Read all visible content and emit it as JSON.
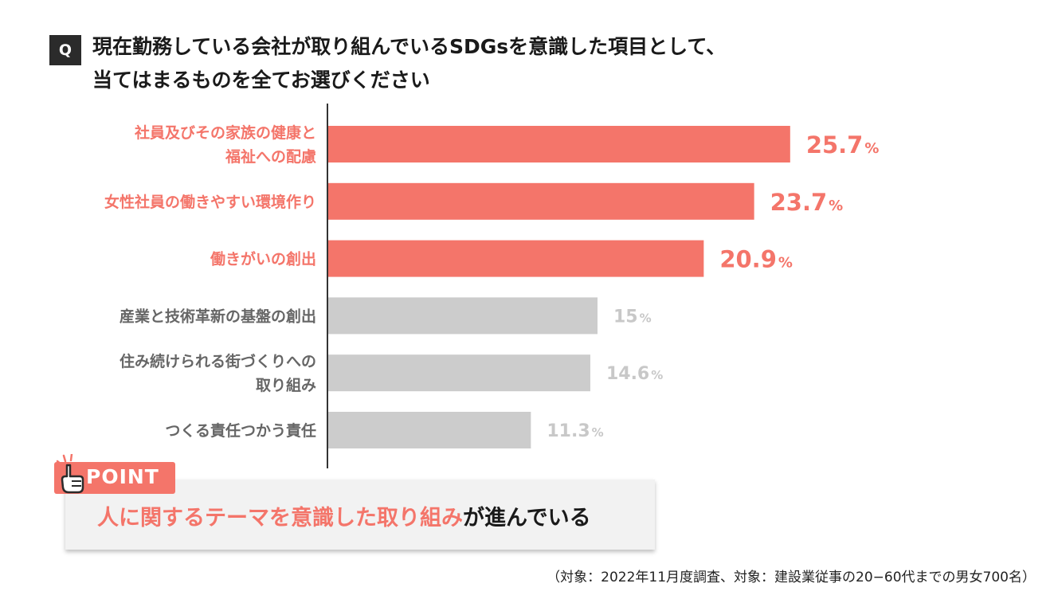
{
  "question": {
    "badge": "Q",
    "line1": "現在勤務している会社が取り組んでいるSDGsを意識した項目として、",
    "line2": "当てはまるものを全てお選びください"
  },
  "colors": {
    "highlight": "#f4756a",
    "muted_bar": "#cccccc",
    "muted_label": "#666666",
    "muted_value": "#c8c8c8"
  },
  "chart_data": {
    "type": "bar",
    "orientation": "horizontal",
    "categories": [
      [
        "社員及びその家族の健康と",
        "福祉への配慮"
      ],
      [
        "女性社員の働きやすい環境作り"
      ],
      [
        "働きがいの創出"
      ],
      [
        "産業と技術革新の基盤の創出"
      ],
      [
        "住み続けられる街づくりへの",
        "取り組み"
      ],
      [
        "つくる責任つかう責任"
      ]
    ],
    "values": [
      25.7,
      23.7,
      20.9,
      15,
      14.6,
      11.3
    ],
    "value_labels": [
      "25.7",
      "23.7",
      "20.9",
      "15",
      "14.6",
      "11.3"
    ],
    "unit": "%",
    "highlighted": [
      true,
      true,
      true,
      false,
      false,
      false
    ],
    "xlim": [
      0,
      32
    ]
  },
  "point": {
    "tag": "POINT",
    "highlight_text": "人に関するテーマを意識した取り組み",
    "rest_text": "が進んでいる"
  },
  "footnote": "（対象：2022年11月度調査、対象：建設業従事の20−60代までの男女700名）"
}
